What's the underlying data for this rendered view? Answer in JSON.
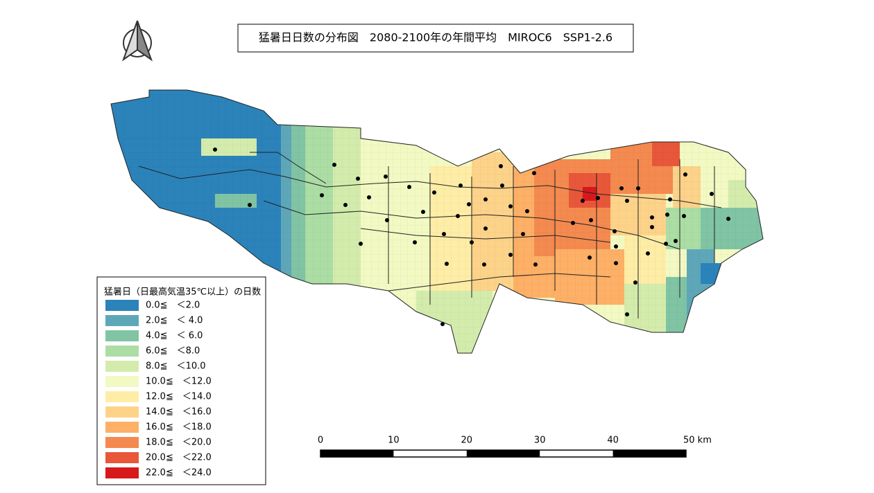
{
  "title": "猛暑日日数の分布図　2080-2100年の年間平均　MIROC6　SSP1-2.6",
  "legend": {
    "title": "猛暑日（日最高気温35℃以上）の日数",
    "items": [
      {
        "label": "0.0≦　＜2.0",
        "color": "#2b83ba"
      },
      {
        "label": "2.0≦　＜ 4.0",
        "color": "#5ea7b9"
      },
      {
        "label": "4.0≦　＜ 6.0",
        "color": "#80c4a4"
      },
      {
        "label": "6.0≦　＜8.0",
        "color": "#abdda4"
      },
      {
        "label": "8.0≦　＜10.0",
        "color": "#d3ecac"
      },
      {
        "label": "10.0≦　＜12.0",
        "color": "#f2f9c2"
      },
      {
        "label": "12.0≦　＜14.0",
        "color": "#feeda6"
      },
      {
        "label": "14.0≦　＜16.0",
        "color": "#fdd38a"
      },
      {
        "label": "16.0≦　＜18.0",
        "color": "#fdb066"
      },
      {
        "label": "18.0≦　＜20.0",
        "color": "#f48a4f"
      },
      {
        "label": "20.0≦　＜22.0",
        "color": "#e8573a"
      },
      {
        "label": "22.0≦　＜24.0",
        "color": "#d7191c"
      }
    ]
  },
  "scale_bar": {
    "labels": [
      "0",
      "10",
      "20",
      "30",
      "40",
      "50 km"
    ]
  }
}
